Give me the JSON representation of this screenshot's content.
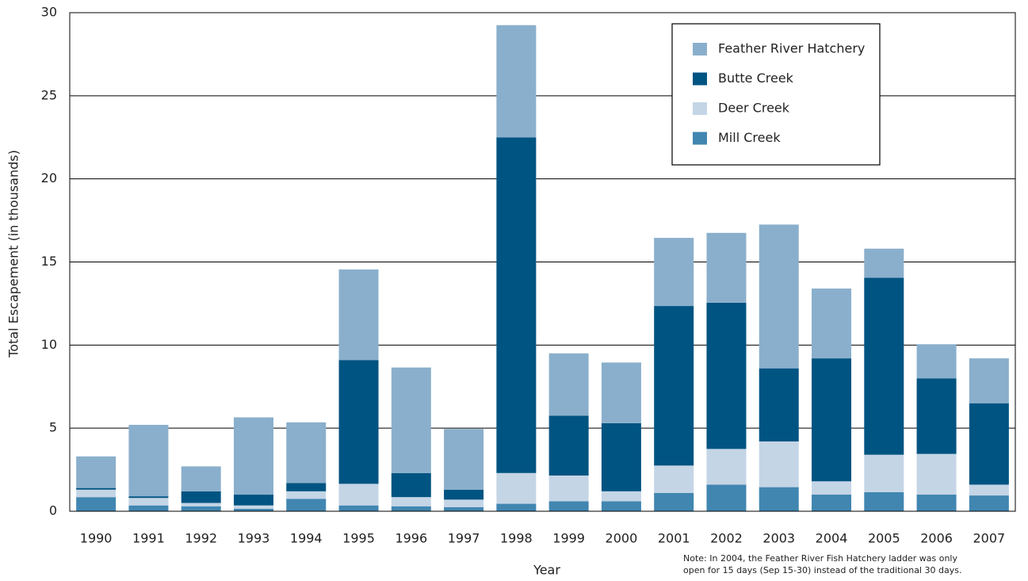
{
  "chart_data": {
    "type": "stacked_bar",
    "x_label": "Year",
    "y_label": "Total Escapement (in thousands)",
    "categories": [
      "1990",
      "1991",
      "1992",
      "1993",
      "1994",
      "1995",
      "1996",
      "1997",
      "1998",
      "1999",
      "2000",
      "2001",
      "2002",
      "2003",
      "2004",
      "2005",
      "2006",
      "2007"
    ],
    "series": [
      {
        "name": "Mill Creek",
        "color": "#4186b1",
        "values": [
          0.85,
          0.35,
          0.3,
          0.15,
          0.75,
          0.35,
          0.3,
          0.25,
          0.45,
          0.6,
          0.6,
          1.1,
          1.6,
          1.45,
          1.0,
          1.15,
          1.0,
          0.95
        ]
      },
      {
        "name": "Deer Creek",
        "color": "#c4d5e6",
        "values": [
          0.45,
          0.45,
          0.2,
          0.2,
          0.45,
          1.3,
          0.55,
          0.45,
          1.85,
          1.55,
          0.6,
          1.65,
          2.15,
          2.75,
          0.8,
          2.25,
          2.45,
          0.65
        ]
      },
      {
        "name": "Butte Creek",
        "color": "#005482",
        "values": [
          0.1,
          0.1,
          0.7,
          0.65,
          0.5,
          7.45,
          1.45,
          0.6,
          20.2,
          3.6,
          4.1,
          9.6,
          8.8,
          4.4,
          7.4,
          10.65,
          4.55,
          4.9
        ]
      },
      {
        "name": "Feather River Hatchery",
        "color": "#8aafcc",
        "values": [
          1.9,
          4.3,
          1.5,
          4.65,
          3.65,
          5.45,
          6.35,
          3.65,
          6.75,
          3.75,
          3.65,
          4.1,
          4.2,
          8.65,
          4.2,
          1.75,
          2.05,
          2.7
        ]
      }
    ],
    "ylim": [
      0,
      30
    ],
    "yticks": [
      0,
      5,
      10,
      15,
      20,
      25,
      30
    ],
    "grid": true,
    "legend": "upper right",
    "annotations": [
      "Note:  In 2004, the Feather River Fish Hatchery ladder was only",
      "open for 15 days (Sep 15-30) instead of the traditional 30 days."
    ]
  }
}
